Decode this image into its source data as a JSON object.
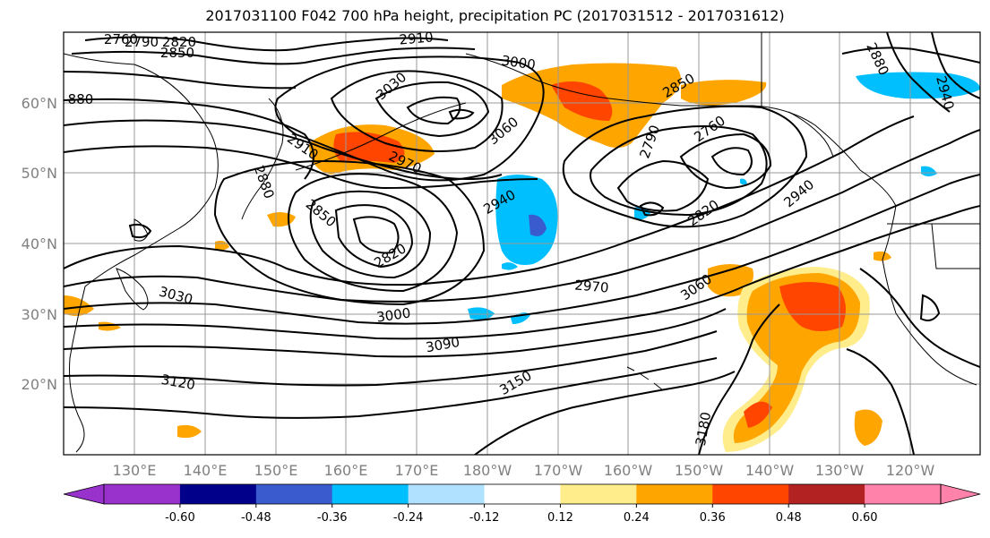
{
  "title": "2017031100 F042 700 hPa height, precipitation PC (2017031512 - 2017031612)",
  "lat_labels": [
    "60°N",
    "50°N",
    "40°N",
    "30°N",
    "20°N"
  ],
  "lon_labels": [
    "130°E",
    "140°E",
    "150°E",
    "160°E",
    "170°E",
    "180°W",
    "170°W",
    "160°W",
    "150°W",
    "140°W",
    "130°W",
    "120°W"
  ],
  "contour_labels": [
    {
      "text": "2760",
      "rot": 0
    },
    {
      "text": "2790",
      "rot": 0
    },
    {
      "text": "2820",
      "rot": 0
    },
    {
      "text": "2850",
      "rot": 0
    },
    {
      "text": "880",
      "rot": 0
    },
    {
      "text": "2910",
      "rot": -5
    },
    {
      "text": "3000",
      "rot": 8
    },
    {
      "text": "3030",
      "rot": -40
    },
    {
      "text": "2910",
      "rot": 35
    },
    {
      "text": "2970",
      "rot": 25
    },
    {
      "text": "3060",
      "rot": -40
    },
    {
      "text": "2850",
      "rot": -30
    },
    {
      "text": "2880",
      "rot": 70
    },
    {
      "text": "2850",
      "rot": 40
    },
    {
      "text": "2940",
      "rot": -30
    },
    {
      "text": "2820",
      "rot": -30
    },
    {
      "text": "2790",
      "rot": -70
    },
    {
      "text": "2760",
      "rot": -35
    },
    {
      "text": "2820",
      "rot": -35
    },
    {
      "text": "2940",
      "rot": -40
    },
    {
      "text": "2880",
      "rot": 65
    },
    {
      "text": "2940",
      "rot": 75
    },
    {
      "text": "3030",
      "rot": 15
    },
    {
      "text": "2970",
      "rot": 5
    },
    {
      "text": "3060",
      "rot": -35
    },
    {
      "text": "3000",
      "rot": -8
    },
    {
      "text": "3090",
      "rot": -10
    },
    {
      "text": "3120",
      "rot": 10
    },
    {
      "text": "3150",
      "rot": -30
    },
    {
      "text": "3180",
      "rot": -80
    }
  ],
  "colorbar": {
    "levels": [
      "-0.60",
      "-0.48",
      "-0.36",
      "-0.24",
      "-0.12",
      "0.12",
      "0.24",
      "0.36",
      "0.48",
      "0.60"
    ],
    "colors": [
      "#9932cc",
      "#00008b",
      "#3a5bcd",
      "#00bfff",
      "#b0e2ff",
      "#ffffff",
      "#ffec8b",
      "#ffa500",
      "#ff4500",
      "#b22222",
      "#ff82ab"
    ]
  },
  "colors": {
    "contour": "#000000",
    "grid": "#999999",
    "blue_light": "#b0e2ff",
    "blue_mid": "#00bfff",
    "blue_dark": "#3a5bcd",
    "yellow": "#ffec8b",
    "orange": "#ffa500",
    "red_orange": "#ff4500"
  }
}
